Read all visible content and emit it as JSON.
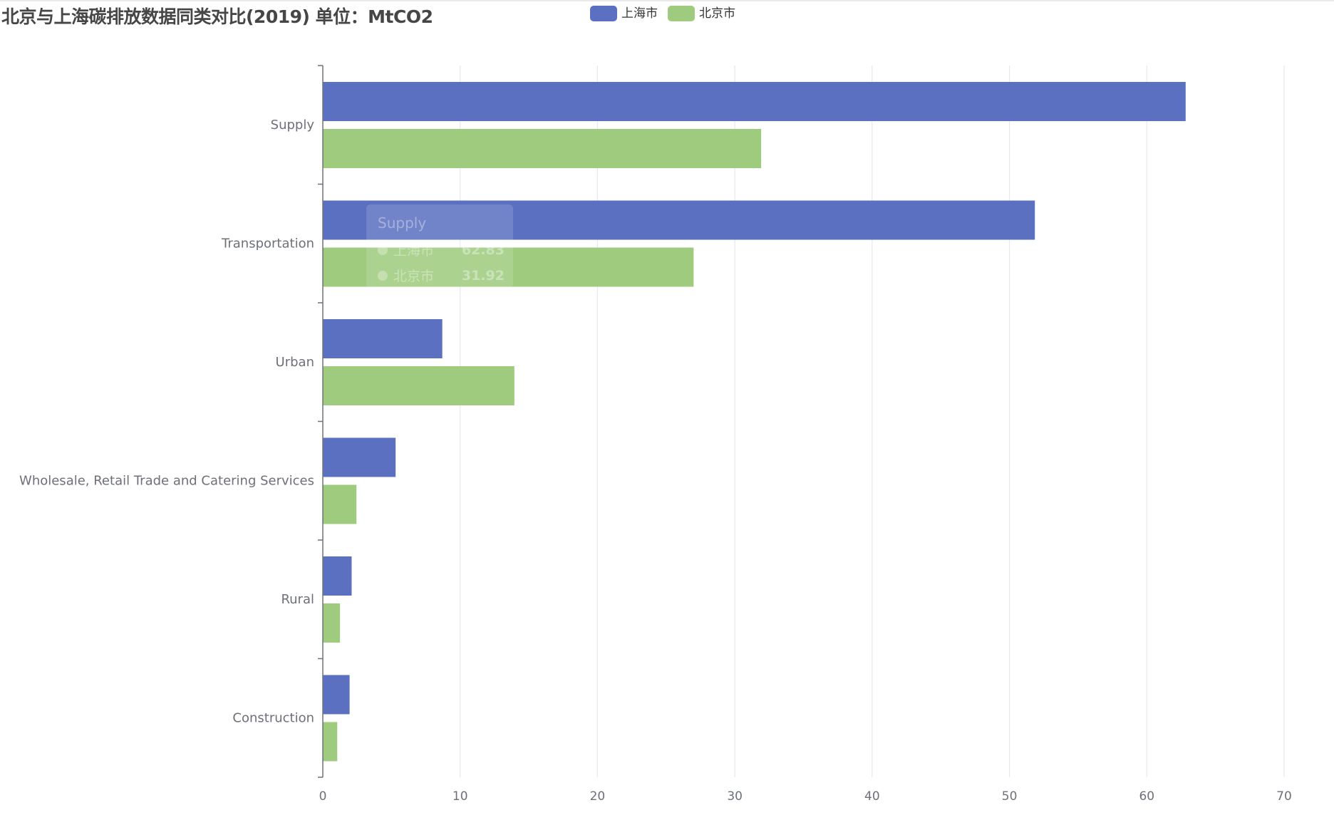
{
  "chart_data": {
    "type": "bar",
    "orientation": "horizontal",
    "title": "北京与上海碳排放数据同类对比(2019) 单位：MtCO2",
    "categories": [
      "Supply",
      "Transportation",
      "Urban",
      "Wholesale, Retail Trade and Catering Services",
      "Rural",
      "Construction"
    ],
    "series": [
      {
        "name": "上海市",
        "color": "#5b70c1",
        "values": [
          62.83,
          51.85,
          8.7,
          5.3,
          2.1,
          1.95
        ]
      },
      {
        "name": "北京市",
        "color": "#9fcb7e",
        "values": [
          31.92,
          27.0,
          13.95,
          2.45,
          1.25,
          1.05
        ]
      }
    ],
    "xlim": [
      0,
      70
    ],
    "xticks": [
      0,
      10,
      20,
      30,
      40,
      50,
      60,
      70
    ],
    "grid": true,
    "legend_position": "top"
  },
  "tooltip": {
    "title": "Supply",
    "rows": [
      {
        "name": "上海市",
        "value": "62.83"
      },
      {
        "name": "北京市",
        "value": "31.92"
      }
    ]
  }
}
